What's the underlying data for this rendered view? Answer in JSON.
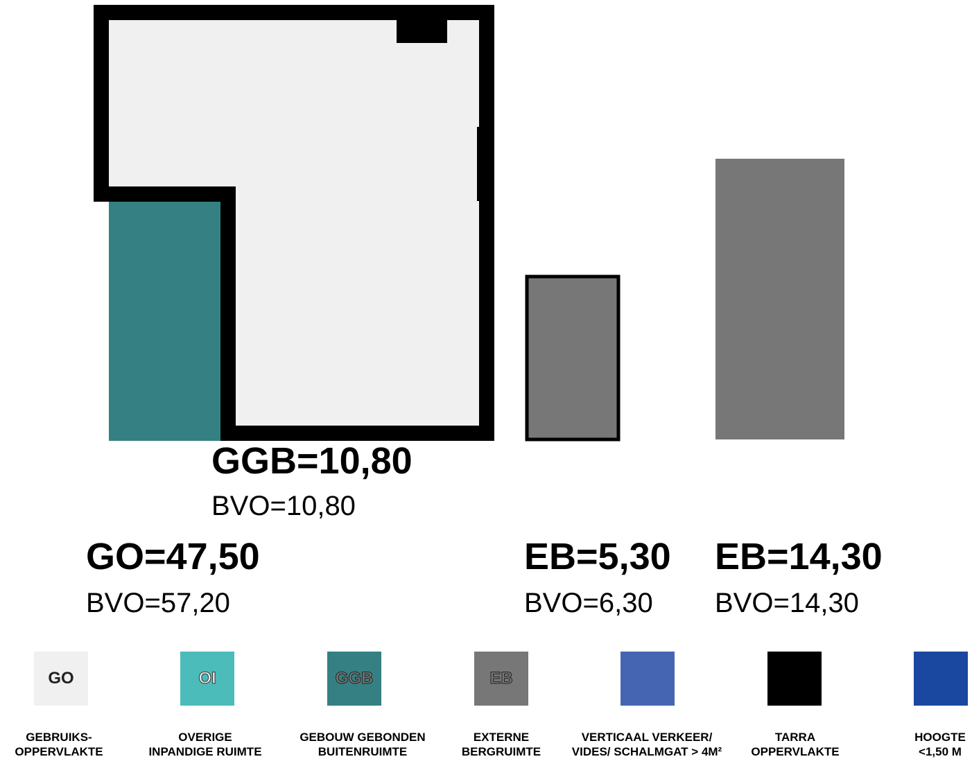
{
  "colors": {
    "go": "#f0f0f0",
    "oi": "#4bbcba",
    "ggb": "#358082",
    "eb": "#777777",
    "vv": "#4565b3",
    "tarra": "#000000",
    "hoogte": "#1a48a0",
    "wall": "#000000"
  },
  "areas": {
    "ggb": {
      "title": "GGB=10,80",
      "bvo": "BVO=10,80"
    },
    "go": {
      "title": "GO=47,50",
      "bvo": "BVO=57,20"
    },
    "eb1": {
      "title": "EB=5,30",
      "bvo": "BVO=6,30"
    },
    "eb2": {
      "title": "EB=14,30",
      "bvo": "BVO=14,30"
    }
  },
  "legend": [
    {
      "code": "GO",
      "color": "#f0f0f0",
      "line1": "GEBRUIKS-",
      "line2": "OPPERVLAKTE"
    },
    {
      "code": "OI",
      "color": "#4bbcba",
      "line1": "OVERIGE",
      "line2": "INPANDIGE RUIMTE"
    },
    {
      "code": "GGB",
      "color": "#358082",
      "line1": "GEBOUW GEBONDEN",
      "line2": "BUITENRUIMTE"
    },
    {
      "code": "EB",
      "color": "#777777",
      "line1": "EXTERNE",
      "line2": "BERGRUIMTE"
    },
    {
      "code": "",
      "color": "#4565b3",
      "line1": "VERTICAAL VERKEER/",
      "line2": "VIDES/ SCHALMGAT > 4M²"
    },
    {
      "code": "",
      "color": "#000000",
      "line1": "TARRA",
      "line2": "OPPERVLAKTE"
    },
    {
      "code": "",
      "color": "#1a48a0",
      "line1": "HOOGTE",
      "line2": "<1,50 M"
    }
  ]
}
